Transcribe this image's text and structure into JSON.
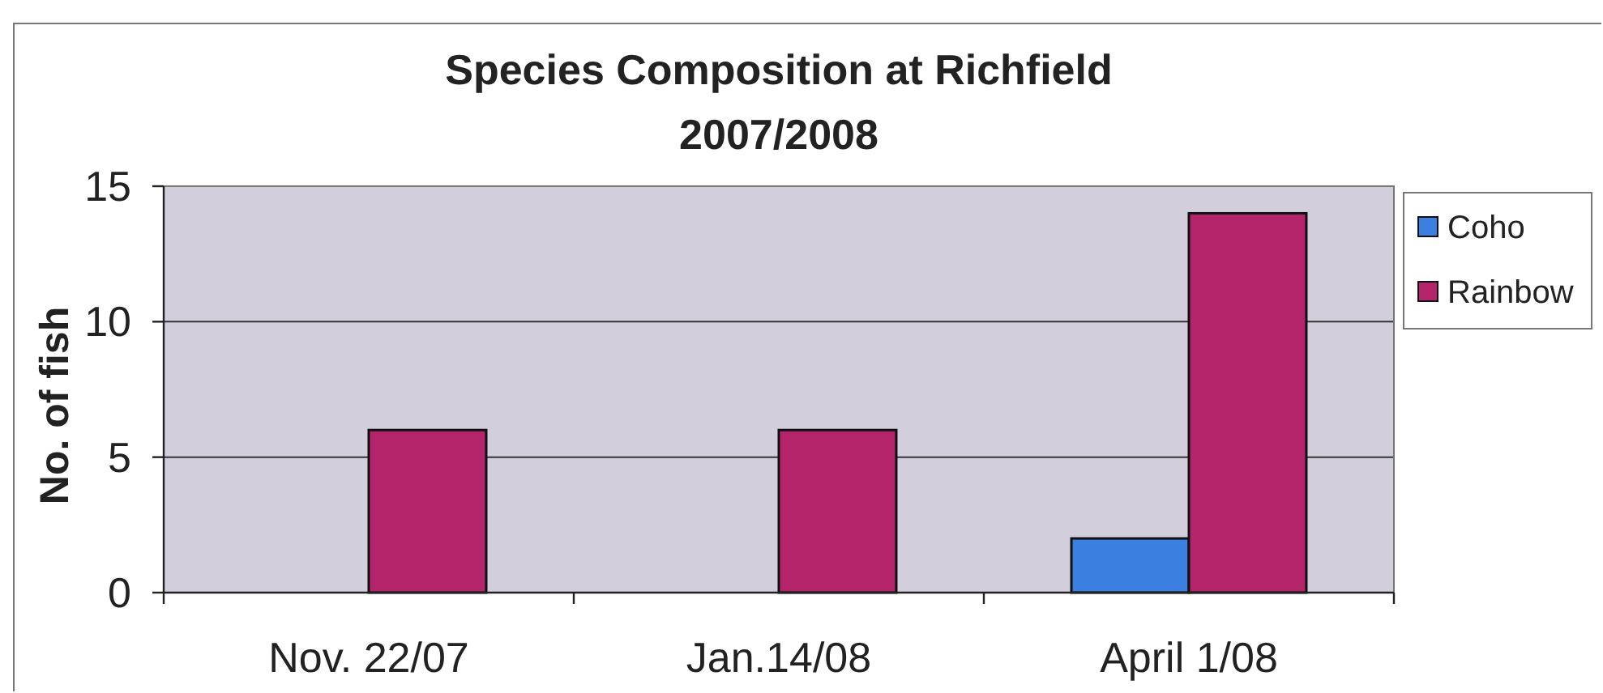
{
  "chart_data": {
    "type": "bar",
    "title": "Species Composition at Richfield\n2007/2008",
    "ylabel": "No. of fish",
    "categories": [
      "Nov. 22/07",
      "Jan.14/08",
      "April 1/08"
    ],
    "series": [
      {
        "name": "Coho",
        "color": "#3b7fe0",
        "values": [
          null,
          null,
          2
        ]
      },
      {
        "name": "Rainbow",
        "color": "#b3246b",
        "values": [
          6,
          6,
          14
        ]
      }
    ],
    "ylim": [
      0,
      15
    ],
    "yticks": [
      0,
      5,
      10,
      15
    ],
    "grid": "y",
    "legend": "right"
  }
}
